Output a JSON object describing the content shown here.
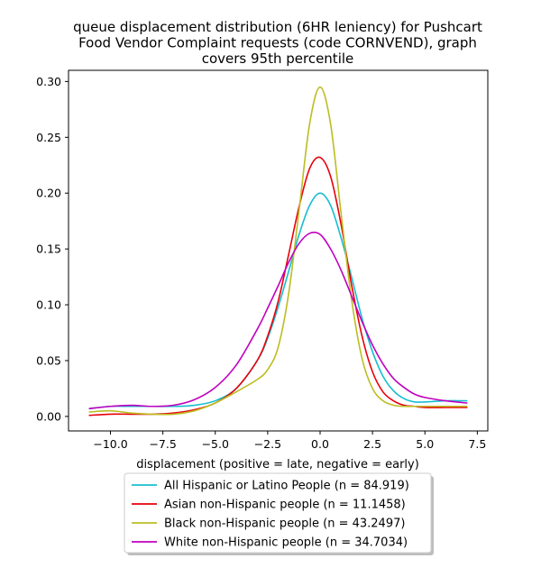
{
  "chart_data": {
    "type": "line",
    "title_lines": [
      "queue displacement distribution (6HR leniency) for Pushcart",
      "Food Vendor Complaint  requests (code CORNVEND), graph",
      "covers 95th percentile"
    ],
    "xlabel": "displacement (positive = late, negative = early)",
    "ylabel": "",
    "xlim": [
      -12,
      8
    ],
    "ylim": [
      -0.013,
      0.31
    ],
    "x_ticks": [
      -10.0,
      -7.5,
      -5.0,
      -2.5,
      0.0,
      2.5,
      5.0,
      7.5
    ],
    "x_tick_labels": [
      "−10.0",
      "−7.5",
      "−5.0",
      "−2.5",
      "0.0",
      "2.5",
      "5.0",
      "7.5"
    ],
    "y_ticks": [
      0.0,
      0.05,
      0.1,
      0.15,
      0.2,
      0.25,
      0.3
    ],
    "y_tick_labels": [
      "0.00",
      "0.05",
      "0.10",
      "0.15",
      "0.20",
      "0.25",
      "0.30"
    ],
    "grid": false,
    "legend_position": "below-center",
    "series": [
      {
        "name": "All Hispanic or Latino People (n = 84.919)",
        "color": "#17becf",
        "x": [
          -11,
          -10,
          -9,
          -8,
          -7,
          -6,
          -5,
          -4,
          -3,
          -2.5,
          -2,
          -1.5,
          -1,
          -0.5,
          0,
          0.5,
          1,
          1.5,
          2,
          2.5,
          3,
          3.5,
          4,
          4.5,
          5,
          6,
          7
        ],
        "y": [
          0.007,
          0.009,
          0.009,
          0.009,
          0.009,
          0.01,
          0.014,
          0.025,
          0.05,
          0.07,
          0.098,
          0.13,
          0.163,
          0.189,
          0.2,
          0.189,
          0.16,
          0.125,
          0.088,
          0.058,
          0.036,
          0.023,
          0.016,
          0.013,
          0.013,
          0.014,
          0.014
        ]
      },
      {
        "name": "Asian non-Hispanic people (n = 11.1458)",
        "color": "#e8000b",
        "x": [
          -11,
          -10,
          -9,
          -8,
          -7,
          -6,
          -5,
          -4,
          -3,
          -2.5,
          -2,
          -1.5,
          -1,
          -0.5,
          0,
          0.5,
          1,
          1.5,
          2,
          2.5,
          3,
          3.5,
          4,
          4.5,
          5,
          6,
          7
        ],
        "y": [
          0.001,
          0.002,
          0.002,
          0.002,
          0.003,
          0.006,
          0.012,
          0.025,
          0.05,
          0.072,
          0.103,
          0.145,
          0.188,
          0.222,
          0.232,
          0.215,
          0.172,
          0.118,
          0.072,
          0.04,
          0.022,
          0.014,
          0.01,
          0.009,
          0.008,
          0.008,
          0.008
        ]
      },
      {
        "name": "Black non-Hispanic people (n = 43.2497)",
        "color": "#bcbd22",
        "x": [
          -11,
          -10,
          -9,
          -8,
          -7,
          -6,
          -5,
          -4,
          -3,
          -2.5,
          -2,
          -1.5,
          -1,
          -0.5,
          0,
          0.5,
          1,
          1.5,
          2,
          2.5,
          3,
          3.5,
          4,
          4.5,
          5,
          6,
          7
        ],
        "y": [
          0.004,
          0.005,
          0.003,
          0.002,
          0.002,
          0.005,
          0.012,
          0.022,
          0.033,
          0.042,
          0.062,
          0.11,
          0.185,
          0.262,
          0.295,
          0.262,
          0.182,
          0.105,
          0.052,
          0.025,
          0.014,
          0.01,
          0.009,
          0.009,
          0.009,
          0.009,
          0.009
        ]
      },
      {
        "name": "White non-Hispanic people (n = 34.7034)",
        "color": "#c000c0",
        "x": [
          -11,
          -10,
          -9,
          -8,
          -7,
          -6,
          -5,
          -4,
          -3,
          -2.5,
          -2,
          -1.5,
          -1,
          -0.5,
          0,
          0.5,
          1,
          1.5,
          2,
          2.5,
          3,
          3.5,
          4,
          4.5,
          5,
          6,
          7
        ],
        "y": [
          0.007,
          0.009,
          0.01,
          0.009,
          0.01,
          0.015,
          0.026,
          0.046,
          0.078,
          0.097,
          0.117,
          0.138,
          0.155,
          0.164,
          0.163,
          0.15,
          0.131,
          0.108,
          0.085,
          0.064,
          0.047,
          0.034,
          0.026,
          0.02,
          0.017,
          0.014,
          0.012
        ]
      }
    ]
  }
}
